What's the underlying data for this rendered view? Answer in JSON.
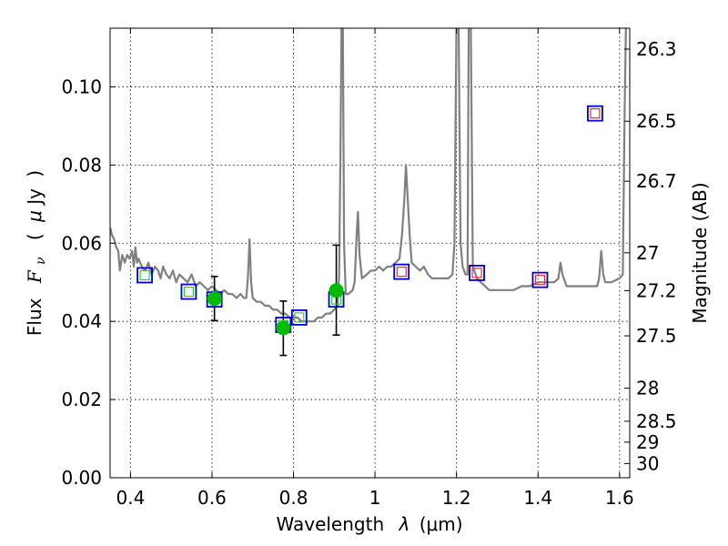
{
  "chart_data": {
    "type": "scatter",
    "xlabel_prefix": "Wavelength",
    "xlabel_lambda": "λ",
    "xlabel_unit": "(μm)",
    "ylabel_prefix": "Flux",
    "ylabel_symbol": "F",
    "ylabel_subscript": "ν",
    "ylabel_unit_open": "(",
    "ylabel_unit_mu": "μ",
    "ylabel_unit_rest": "Jy",
    "ylabel_unit_close": ")",
    "y2label": "Magnitude (AB)",
    "xlim": [
      0.35,
      1.625
    ],
    "ylim": [
      0.0,
      0.115
    ],
    "grid": true,
    "xticks": [
      0.4,
      0.6,
      0.8,
      1.0,
      1.2,
      1.4,
      1.6
    ],
    "xtick_labels": [
      "0.4",
      "0.6",
      "0.8",
      "1",
      "1.2",
      "1.4",
      "1.6"
    ],
    "yticks": [
      0.0,
      0.02,
      0.04,
      0.06,
      0.08,
      0.1
    ],
    "ytick_labels": [
      "0.00",
      "0.02",
      "0.04",
      "0.06",
      "0.08",
      "0.10"
    ],
    "mag_ticks": [
      {
        "label": "26.3",
        "mag": 26.3
      },
      {
        "label": "26.5",
        "mag": 26.5
      },
      {
        "label": "26.7",
        "mag": 26.7
      },
      {
        "label": "27",
        "mag": 27.0
      },
      {
        "label": "27.2",
        "mag": 27.2
      },
      {
        "label": "27.5",
        "mag": 27.5
      },
      {
        "label": "28",
        "mag": 28.0
      },
      {
        "label": "28.5",
        "mag": 28.5
      },
      {
        "label": "29",
        "mag": 29.0
      },
      {
        "label": "30",
        "mag": 30.0
      }
    ],
    "sed_model": {
      "name": "model spectrum",
      "color": "#808080",
      "points": [
        [
          0.35,
          0.064
        ],
        [
          0.355,
          0.062
        ],
        [
          0.36,
          0.061
        ],
        [
          0.365,
          0.059
        ],
        [
          0.37,
          0.058
        ],
        [
          0.374,
          0.053
        ],
        [
          0.38,
          0.057
        ],
        [
          0.386,
          0.055
        ],
        [
          0.392,
          0.057
        ],
        [
          0.398,
          0.056
        ],
        [
          0.404,
          0.058
        ],
        [
          0.408,
          0.054
        ],
        [
          0.412,
          0.059
        ],
        [
          0.416,
          0.055
        ],
        [
          0.42,
          0.056
        ],
        [
          0.428,
          0.054
        ],
        [
          0.436,
          0.053
        ],
        [
          0.444,
          0.055
        ],
        [
          0.452,
          0.052
        ],
        [
          0.46,
          0.054
        ],
        [
          0.468,
          0.053
        ],
        [
          0.474,
          0.051
        ],
        [
          0.48,
          0.054
        ],
        [
          0.488,
          0.052
        ],
        [
          0.496,
          0.051
        ],
        [
          0.504,
          0.053
        ],
        [
          0.512,
          0.05
        ],
        [
          0.52,
          0.052
        ],
        [
          0.53,
          0.051
        ],
        [
          0.54,
          0.05
        ],
        [
          0.55,
          0.052
        ],
        [
          0.56,
          0.049
        ],
        [
          0.57,
          0.05
        ],
        [
          0.58,
          0.049
        ],
        [
          0.59,
          0.048
        ],
        [
          0.6,
          0.049
        ],
        [
          0.61,
          0.048
        ],
        [
          0.62,
          0.047
        ],
        [
          0.63,
          0.048
        ],
        [
          0.64,
          0.047
        ],
        [
          0.65,
          0.047
        ],
        [
          0.66,
          0.046
        ],
        [
          0.67,
          0.047
        ],
        [
          0.678,
          0.046
        ],
        [
          0.684,
          0.046
        ],
        [
          0.688,
          0.051
        ],
        [
          0.692,
          0.061
        ],
        [
          0.696,
          0.05
        ],
        [
          0.7,
          0.046
        ],
        [
          0.71,
          0.045
        ],
        [
          0.72,
          0.045
        ],
        [
          0.73,
          0.044
        ],
        [
          0.74,
          0.044
        ],
        [
          0.75,
          0.043
        ],
        [
          0.76,
          0.043
        ],
        [
          0.77,
          0.042
        ],
        [
          0.78,
          0.042
        ],
        [
          0.79,
          0.041
        ],
        [
          0.8,
          0.041
        ],
        [
          0.81,
          0.041
        ],
        [
          0.82,
          0.04
        ],
        [
          0.83,
          0.04
        ],
        [
          0.84,
          0.04
        ],
        [
          0.85,
          0.04
        ],
        [
          0.86,
          0.041
        ],
        [
          0.87,
          0.041
        ],
        [
          0.88,
          0.042
        ],
        [
          0.89,
          0.042
        ],
        [
          0.9,
          0.043
        ],
        [
          0.908,
          0.044
        ],
        [
          0.912,
          0.052
        ],
        [
          0.915,
          0.08
        ],
        [
          0.918,
          0.118
        ],
        [
          0.921,
          0.118
        ],
        [
          0.924,
          0.06
        ],
        [
          0.928,
          0.047
        ],
        [
          0.935,
          0.047
        ],
        [
          0.945,
          0.048
        ],
        [
          0.95,
          0.05
        ],
        [
          0.955,
          0.062
        ],
        [
          0.958,
          0.068
        ],
        [
          0.962,
          0.057
        ],
        [
          0.968,
          0.051
        ],
        [
          0.98,
          0.052
        ],
        [
          0.99,
          0.053
        ],
        [
          1.0,
          0.053
        ],
        [
          1.01,
          0.054
        ],
        [
          1.02,
          0.053
        ],
        [
          1.03,
          0.054
        ],
        [
          1.04,
          0.054
        ],
        [
          1.05,
          0.055
        ],
        [
          1.06,
          0.056
        ],
        [
          1.066,
          0.062
        ],
        [
          1.072,
          0.071
        ],
        [
          1.076,
          0.08
        ],
        [
          1.08,
          0.072
        ],
        [
          1.085,
          0.062
        ],
        [
          1.09,
          0.055
        ],
        [
          1.1,
          0.054
        ],
        [
          1.11,
          0.053
        ],
        [
          1.12,
          0.054
        ],
        [
          1.13,
          0.052
        ],
        [
          1.14,
          0.051
        ],
        [
          1.15,
          0.051
        ],
        [
          1.16,
          0.051
        ],
        [
          1.17,
          0.051
        ],
        [
          1.18,
          0.051
        ],
        [
          1.19,
          0.052
        ],
        [
          1.195,
          0.06
        ],
        [
          1.2,
          0.118
        ],
        [
          1.205,
          0.118
        ],
        [
          1.21,
          0.06
        ],
        [
          1.215,
          0.054
        ],
        [
          1.222,
          0.052
        ],
        [
          1.227,
          0.052
        ],
        [
          1.23,
          0.118
        ],
        [
          1.235,
          0.118
        ],
        [
          1.24,
          0.054
        ],
        [
          1.25,
          0.051
        ],
        [
          1.26,
          0.05
        ],
        [
          1.27,
          0.049
        ],
        [
          1.28,
          0.048
        ],
        [
          1.29,
          0.048
        ],
        [
          1.3,
          0.048
        ],
        [
          1.32,
          0.048
        ],
        [
          1.34,
          0.048
        ],
        [
          1.36,
          0.049
        ],
        [
          1.38,
          0.049
        ],
        [
          1.4,
          0.05
        ],
        [
          1.42,
          0.05
        ],
        [
          1.44,
          0.05
        ],
        [
          1.45,
          0.051
        ],
        [
          1.455,
          0.055
        ],
        [
          1.46,
          0.052
        ],
        [
          1.47,
          0.049
        ],
        [
          1.5,
          0.049
        ],
        [
          1.53,
          0.049
        ],
        [
          1.545,
          0.049
        ],
        [
          1.55,
          0.051
        ],
        [
          1.555,
          0.058
        ],
        [
          1.56,
          0.052
        ],
        [
          1.565,
          0.05
        ],
        [
          1.58,
          0.05
        ],
        [
          1.6,
          0.051
        ],
        [
          1.608,
          0.052
        ],
        [
          1.612,
          0.09
        ],
        [
          1.616,
          0.118
        ],
        [
          1.625,
          0.118
        ]
      ]
    },
    "model_photometry": {
      "name": "model photometry",
      "color": "#0000cc",
      "points": [
        [
          0.435,
          0.0518
        ],
        [
          0.543,
          0.0476
        ],
        [
          0.606,
          0.0456
        ],
        [
          0.775,
          0.0391
        ],
        [
          0.814,
          0.041
        ],
        [
          0.905,
          0.0456
        ],
        [
          1.065,
          0.0527
        ],
        [
          1.25,
          0.0524
        ],
        [
          1.405,
          0.0506
        ],
        [
          1.54,
          0.0932
        ]
      ]
    },
    "optical_filters": {
      "name": "optical band symbols",
      "color": "#33cc33",
      "points": [
        [
          0.435,
          0.0518
        ],
        [
          0.543,
          0.0476
        ],
        [
          0.606,
          0.0456
        ],
        [
          0.775,
          0.0391
        ],
        [
          0.814,
          0.041
        ],
        [
          0.905,
          0.0456
        ]
      ]
    },
    "nir_filters": {
      "name": "near-IR band symbols",
      "color": "#dd3333",
      "points": [
        [
          1.065,
          0.0527
        ],
        [
          1.25,
          0.0524
        ],
        [
          1.405,
          0.0506
        ],
        [
          1.54,
          0.0932
        ]
      ]
    },
    "observations": {
      "name": "observed fluxes",
      "color": "#00bb00",
      "points": [
        {
          "x": 0.606,
          "y": 0.0458,
          "lo": 0.0402,
          "hi": 0.0515
        },
        {
          "x": 0.775,
          "y": 0.0383,
          "lo": 0.0313,
          "hi": 0.0452
        },
        {
          "x": 0.905,
          "y": 0.0479,
          "lo": 0.0365,
          "hi": 0.0595
        }
      ]
    }
  }
}
